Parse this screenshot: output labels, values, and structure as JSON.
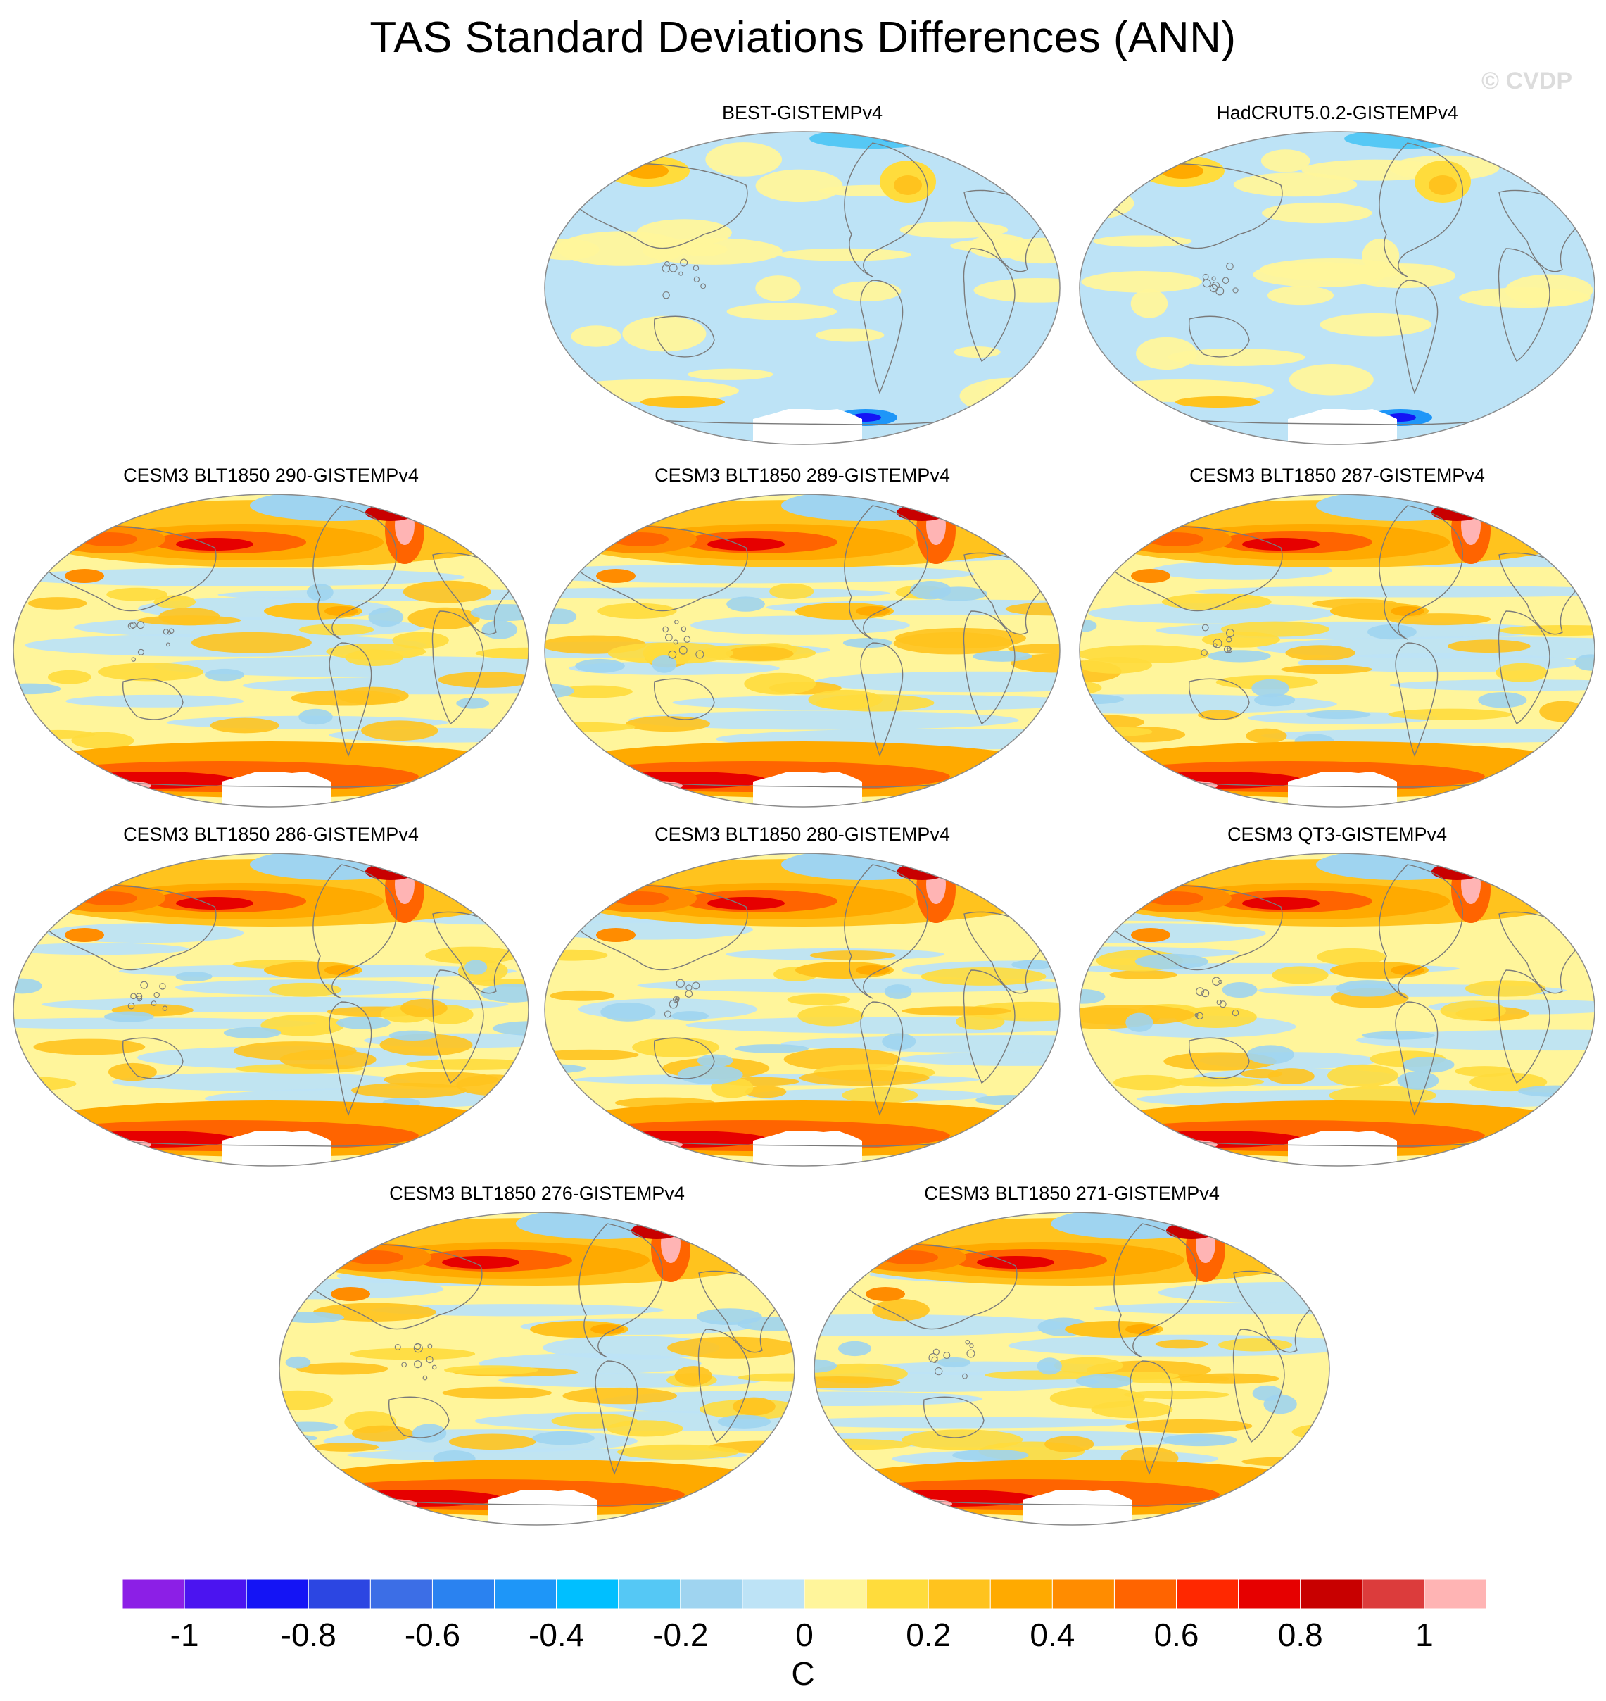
{
  "title": "TAS Standard Deviations Differences (ANN)",
  "watermark": "© CVDP",
  "chart_data": {
    "type": "heatmap",
    "projection": "Robinson (global maps)",
    "variable": "TAS standard deviation difference",
    "season": "ANN",
    "panels": [
      {
        "name": "BEST-GISTEMPv4",
        "style": "obs"
      },
      {
        "name": "HadCRUT5.0.2-GISTEMPv4",
        "style": "obs2"
      },
      {
        "name": "CESM3 BLT1850 290-GISTEMPv4",
        "style": "model"
      },
      {
        "name": "CESM3 BLT1850 289-GISTEMPv4",
        "style": "model"
      },
      {
        "name": "CESM3 BLT1850 287-GISTEMPv4",
        "style": "model"
      },
      {
        "name": "CESM3 BLT1850 286-GISTEMPv4",
        "style": "model"
      },
      {
        "name": "CESM3 BLT1850 280-GISTEMPv4",
        "style": "model"
      },
      {
        "name": "CESM3 QT3-GISTEMPv4",
        "style": "model"
      },
      {
        "name": "CESM3 BLT1850 276-GISTEMPv4",
        "style": "model"
      },
      {
        "name": "CESM3 BLT1850 271-GISTEMPv4",
        "style": "model"
      }
    ],
    "colorbar": {
      "levels": [
        -1.1,
        -1.0,
        -0.9,
        -0.8,
        -0.7,
        -0.6,
        -0.5,
        -0.4,
        -0.3,
        -0.2,
        -0.1,
        0,
        0.1,
        0.2,
        0.3,
        0.4,
        0.5,
        0.6,
        0.7,
        0.8,
        0.9,
        1.0,
        1.1
      ],
      "colors": [
        "#8c1fe6",
        "#4b14f0",
        "#1414f5",
        "#2c46e2",
        "#3c6ee6",
        "#2a82f0",
        "#1e96f8",
        "#00bfff",
        "#55c8f5",
        "#9fd4f0",
        "#bde3f6",
        "#fff59b",
        "#ffdc3c",
        "#ffc31e",
        "#ffaa00",
        "#ff8c00",
        "#ff6400",
        "#ff2800",
        "#e60000",
        "#c80000",
        "#dc3c3c",
        "#ffb4b4"
      ],
      "tick_values": [
        -1,
        -0.8,
        -0.6,
        -0.4,
        -0.2,
        0,
        0.2,
        0.4,
        0.6,
        0.8,
        1
      ],
      "tick_labels": [
        "-1",
        "-0.8",
        "-0.6",
        "-0.4",
        "-0.2",
        "0",
        "0.2",
        "0.4",
        "0.6",
        "0.8",
        "1"
      ],
      "units": "C"
    }
  }
}
